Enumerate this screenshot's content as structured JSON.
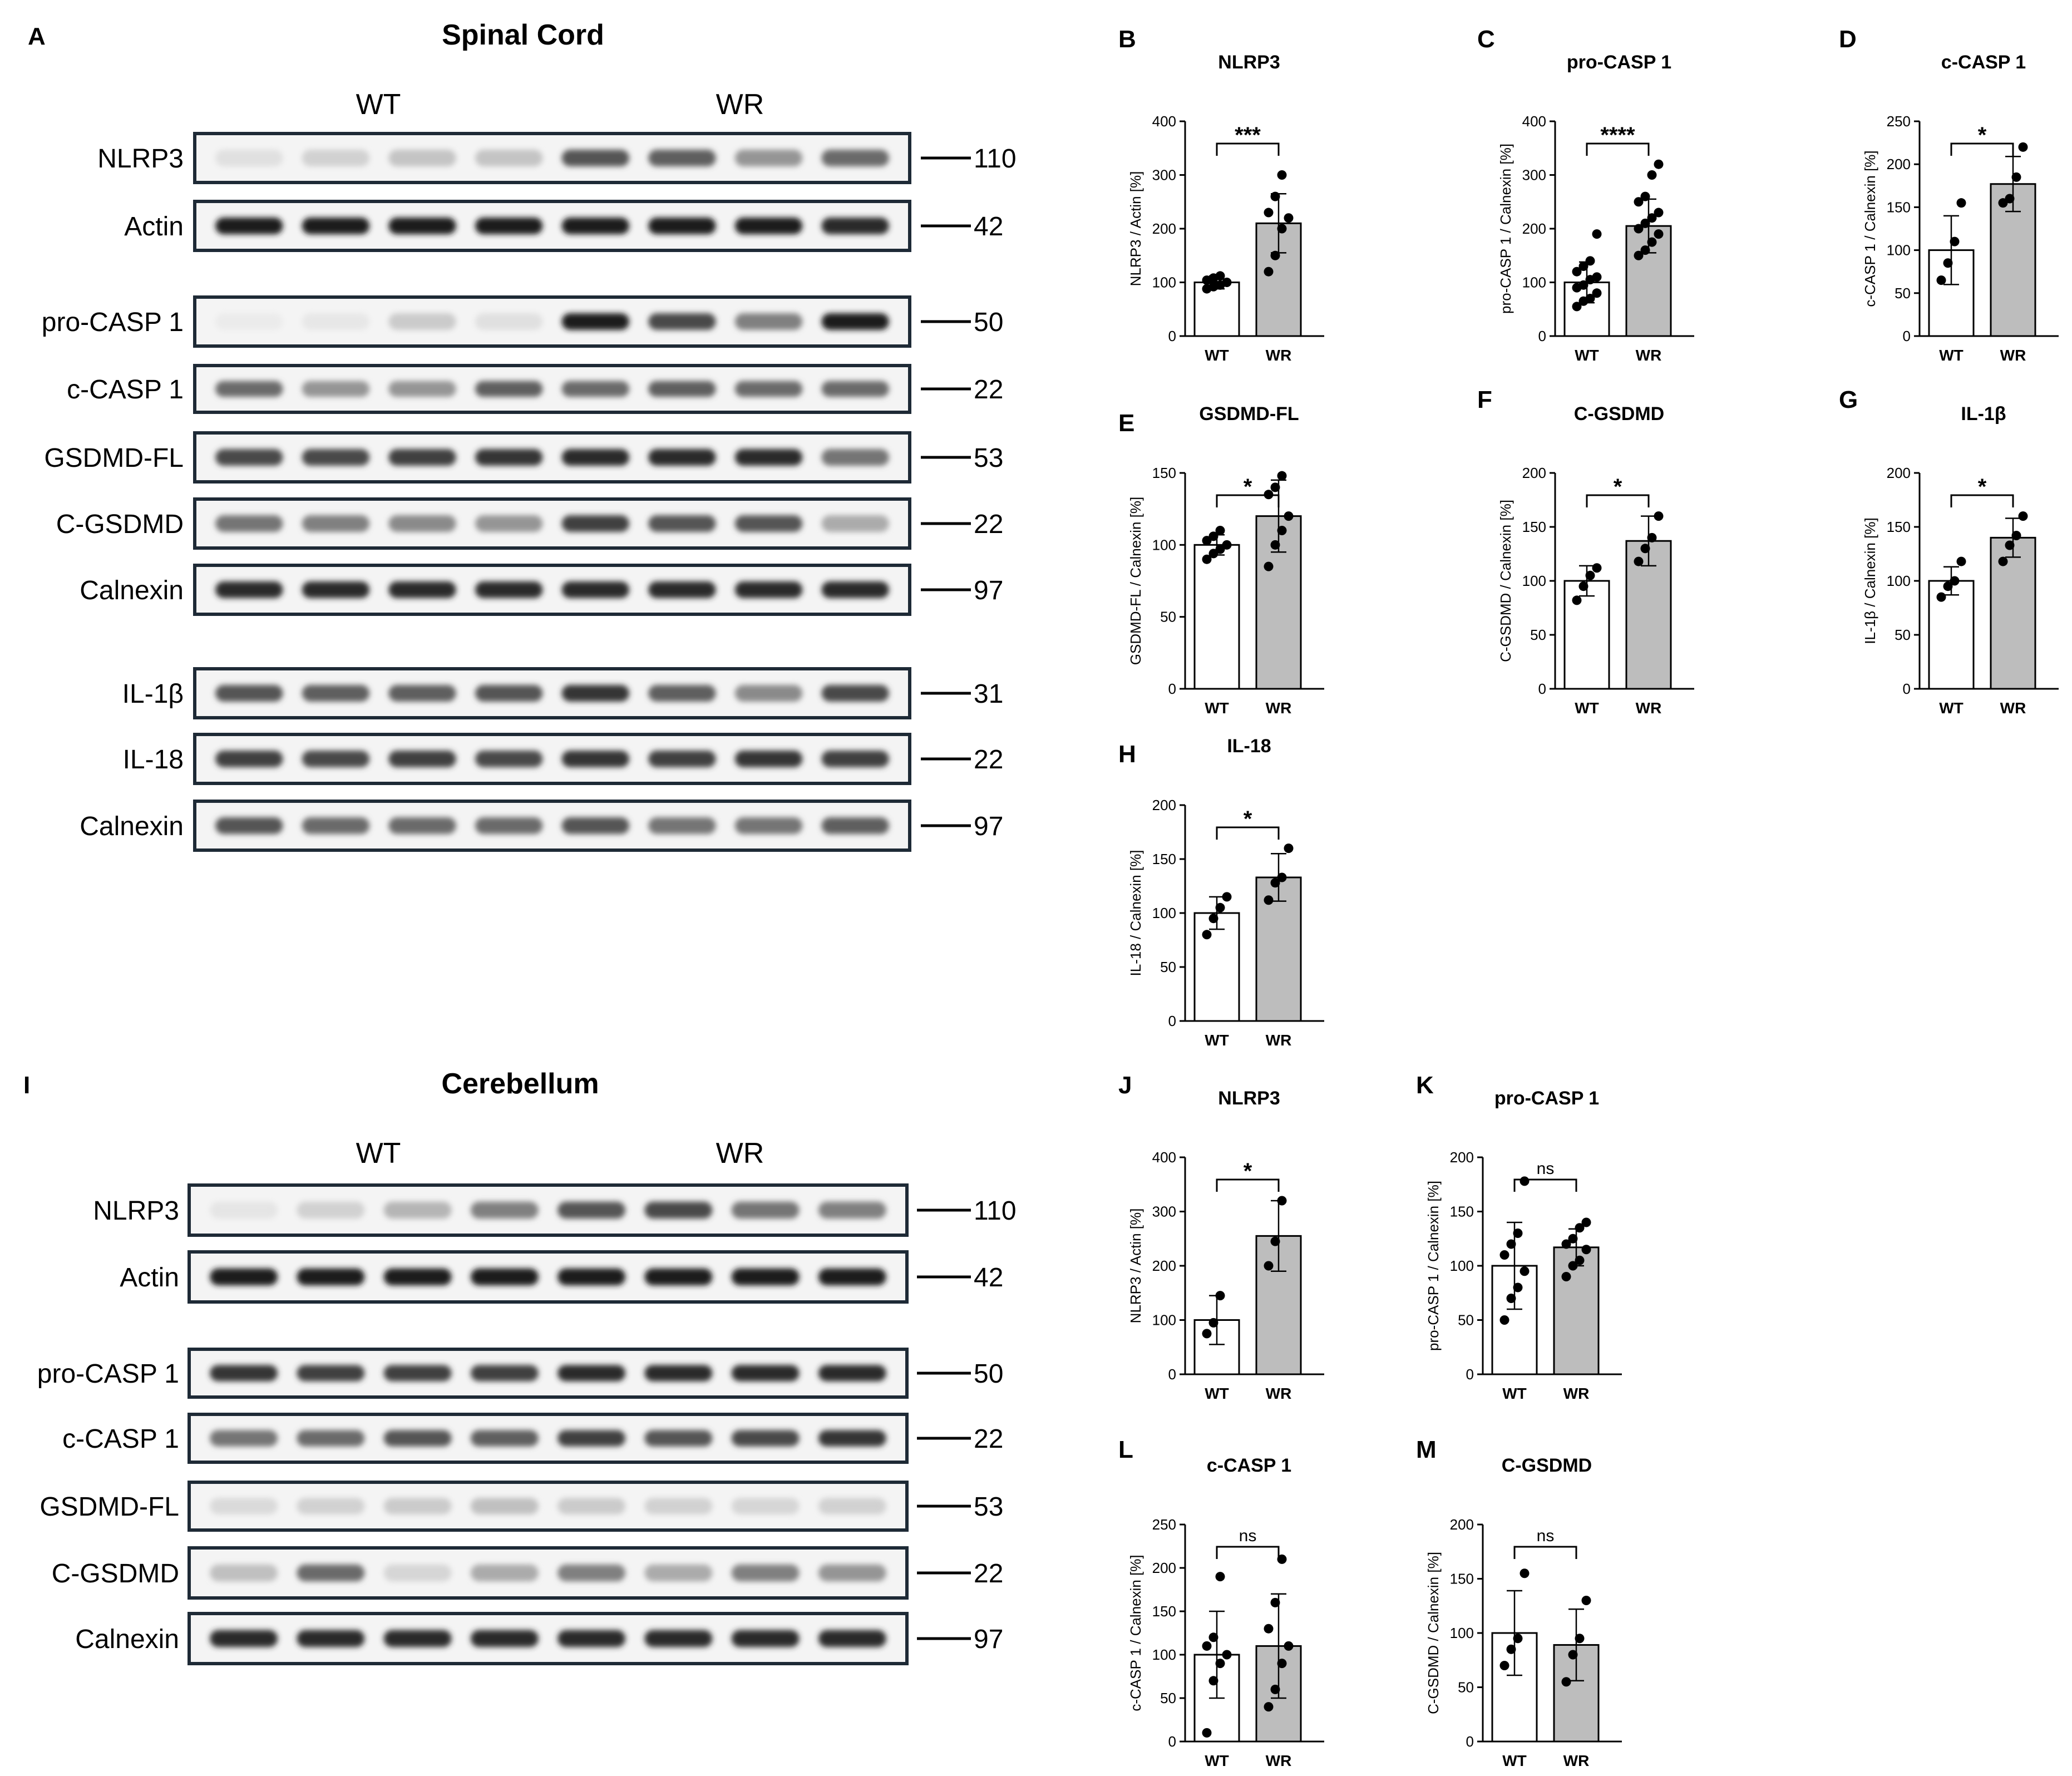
{
  "sections": [
    {
      "letter": "A",
      "title": "Spinal Cord",
      "groups": [
        "WT",
        "WR"
      ],
      "blots": [
        {
          "label": "NLRP3",
          "mw": "110",
          "intensity": [
            0.05,
            0.12,
            0.18,
            0.18,
            0.7,
            0.65,
            0.4,
            0.6
          ]
        },
        {
          "label": "Actin",
          "mw": "42",
          "intensity": [
            0.95,
            0.95,
            0.95,
            0.95,
            0.95,
            0.95,
            0.95,
            0.9
          ]
        },
        {
          "label": "pro-CASP 1",
          "mw": "50",
          "intensity": [
            0.0,
            0.02,
            0.15,
            0.05,
            0.95,
            0.75,
            0.5,
            0.95
          ]
        },
        {
          "label": "c-CASP 1",
          "mw": "22",
          "intensity": [
            0.6,
            0.4,
            0.4,
            0.65,
            0.6,
            0.65,
            0.6,
            0.6
          ]
        },
        {
          "label": "GSDMD-FL",
          "mw": "53",
          "intensity": [
            0.75,
            0.75,
            0.8,
            0.85,
            0.9,
            0.9,
            0.9,
            0.55
          ]
        },
        {
          "label": "C-GSDMD",
          "mw": "22",
          "intensity": [
            0.55,
            0.5,
            0.45,
            0.4,
            0.8,
            0.7,
            0.7,
            0.3
          ]
        },
        {
          "label": "Calnexin",
          "mw": "97",
          "intensity": [
            0.9,
            0.9,
            0.9,
            0.9,
            0.9,
            0.9,
            0.9,
            0.9
          ]
        },
        {
          "label": "IL-1β",
          "mw": "31",
          "intensity": [
            0.7,
            0.65,
            0.65,
            0.7,
            0.85,
            0.65,
            0.45,
            0.75
          ]
        },
        {
          "label": "IL-18",
          "mw": "22",
          "intensity": [
            0.8,
            0.75,
            0.8,
            0.75,
            0.85,
            0.8,
            0.85,
            0.8
          ]
        },
        {
          "label": "Calnexin",
          "mw": "97",
          "intensity": [
            0.7,
            0.6,
            0.6,
            0.6,
            0.7,
            0.55,
            0.55,
            0.65
          ]
        }
      ]
    },
    {
      "letter": "I",
      "title": "Cerebellum",
      "groups": [
        "WT",
        "WR"
      ],
      "blots": [
        {
          "label": "NLRP3",
          "mw": "110",
          "intensity": [
            0.03,
            0.12,
            0.25,
            0.5,
            0.7,
            0.75,
            0.55,
            0.5
          ]
        },
        {
          "label": "Actin",
          "mw": "42",
          "intensity": [
            0.95,
            0.95,
            0.95,
            0.95,
            0.95,
            0.95,
            0.95,
            0.95
          ]
        },
        {
          "label": "pro-CASP 1",
          "mw": "50",
          "intensity": [
            0.85,
            0.8,
            0.8,
            0.8,
            0.9,
            0.9,
            0.9,
            0.9
          ]
        },
        {
          "label": "c-CASP 1",
          "mw": "22",
          "intensity": [
            0.55,
            0.6,
            0.7,
            0.65,
            0.8,
            0.7,
            0.75,
            0.85
          ]
        },
        {
          "label": "GSDMD-FL",
          "mw": "53",
          "intensity": [
            0.08,
            0.12,
            0.15,
            0.2,
            0.15,
            0.12,
            0.1,
            0.12
          ]
        },
        {
          "label": "C-GSDMD",
          "mw": "22",
          "intensity": [
            0.2,
            0.6,
            0.1,
            0.3,
            0.5,
            0.3,
            0.5,
            0.4
          ]
        },
        {
          "label": "Calnexin",
          "mw": "97",
          "intensity": [
            0.9,
            0.9,
            0.9,
            0.9,
            0.9,
            0.9,
            0.9,
            0.9
          ]
        }
      ]
    }
  ],
  "chart_data": [
    {
      "letter": "B",
      "type": "bar",
      "title": "NLRP3",
      "ylabel": "NLRP3 / Actin [%]",
      "categories": [
        "WT",
        "WR"
      ],
      "ylim": [
        0,
        400
      ],
      "yticks": [
        0,
        100,
        200,
        300,
        400
      ],
      "values": [
        100,
        210
      ],
      "errors": [
        12,
        55
      ],
      "points": [
        [
          88,
          92,
          95,
          100,
          104,
          108,
          112
        ],
        [
          120,
          150,
          200,
          220,
          230,
          260,
          300
        ]
      ],
      "significance": "***"
    },
    {
      "letter": "C",
      "type": "bar",
      "title": "pro-CASP 1",
      "ylabel": "pro-CASP 1 / Calnexin [%]",
      "categories": [
        "WT",
        "WR"
      ],
      "ylim": [
        0,
        400
      ],
      "yticks": [
        0,
        100,
        200,
        300,
        400
      ],
      "values": [
        100,
        205
      ],
      "errors": [
        38,
        50
      ],
      "points": [
        [
          55,
          65,
          70,
          80,
          90,
          95,
          105,
          110,
          120,
          130,
          140,
          190
        ],
        [
          150,
          160,
          175,
          190,
          200,
          210,
          220,
          230,
          250,
          260,
          300,
          320
        ]
      ],
      "significance": "****"
    },
    {
      "letter": "D",
      "type": "bar",
      "title": "c-CASP 1",
      "ylabel": "c-CASP 1 / Calnexin [%]",
      "categories": [
        "WT",
        "WR"
      ],
      "ylim": [
        0,
        250
      ],
      "yticks": [
        0,
        50,
        100,
        150,
        200,
        250
      ],
      "values": [
        100,
        177
      ],
      "errors": [
        40,
        32
      ],
      "points": [
        [
          65,
          85,
          110,
          155
        ],
        [
          155,
          160,
          185,
          220
        ]
      ],
      "significance": "*"
    },
    {
      "letter": "E",
      "type": "bar",
      "title": "GSDMD-FL",
      "ylabel": "GSDMD-FL / Calnexin [%]",
      "categories": [
        "WT",
        "WR"
      ],
      "ylim": [
        0,
        150
      ],
      "yticks": [
        0,
        50,
        100,
        150
      ],
      "values": [
        100,
        120
      ],
      "errors": [
        7,
        25
      ],
      "points": [
        [
          90,
          94,
          97,
          100,
          103,
          106,
          110
        ],
        [
          85,
          100,
          110,
          120,
          135,
          140,
          148
        ]
      ],
      "significance": "*"
    },
    {
      "letter": "F",
      "type": "bar",
      "title": "C-GSDMD",
      "ylabel": "C-GSDMD / Calnexin [%]",
      "categories": [
        "WT",
        "WR"
      ],
      "ylim": [
        0,
        200
      ],
      "yticks": [
        0,
        50,
        100,
        150,
        200
      ],
      "values": [
        100,
        137
      ],
      "errors": [
        14,
        23
      ],
      "points": [
        [
          82,
          95,
          105,
          112
        ],
        [
          118,
          130,
          140,
          160
        ]
      ],
      "significance": "*"
    },
    {
      "letter": "G",
      "type": "bar",
      "title": "IL-1β",
      "ylabel": "IL-1β / Calnexin [%]",
      "categories": [
        "WT",
        "WR"
      ],
      "ylim": [
        0,
        200
      ],
      "yticks": [
        0,
        50,
        100,
        150,
        200
      ],
      "values": [
        100,
        140
      ],
      "errors": [
        13,
        18
      ],
      "points": [
        [
          85,
          95,
          100,
          118
        ],
        [
          118,
          133,
          142,
          160
        ]
      ],
      "significance": "*"
    },
    {
      "letter": "H",
      "type": "bar",
      "title": "IL-18",
      "ylabel": "IL-18 / Calnexin [%]",
      "categories": [
        "WT",
        "WR"
      ],
      "ylim": [
        0,
        200
      ],
      "yticks": [
        0,
        50,
        100,
        150,
        200
      ],
      "values": [
        100,
        133
      ],
      "errors": [
        15,
        22
      ],
      "points": [
        [
          80,
          95,
          105,
          115
        ],
        [
          112,
          128,
          133,
          160
        ]
      ],
      "significance": "*"
    },
    {
      "letter": "J",
      "type": "bar",
      "title": "NLRP3",
      "ylabel": "NLRP3 / Actin [%]",
      "categories": [
        "WT",
        "WR"
      ],
      "ylim": [
        0,
        400
      ],
      "yticks": [
        0,
        100,
        200,
        300,
        400
      ],
      "values": [
        100,
        255
      ],
      "errors": [
        45,
        65
      ],
      "points": [
        [
          75,
          95,
          145
        ],
        [
          200,
          245,
          320
        ]
      ],
      "significance": "*"
    },
    {
      "letter": "K",
      "type": "bar",
      "title": "pro-CASP 1",
      "ylabel": "pro-CASP 1 / Calnexin [%]",
      "categories": [
        "WT",
        "WR"
      ],
      "ylim": [
        0,
        200
      ],
      "yticks": [
        0,
        50,
        100,
        150,
        200
      ],
      "values": [
        100,
        117
      ],
      "errors": [
        40,
        17
      ],
      "points": [
        [
          50,
          70,
          80,
          95,
          110,
          120,
          130,
          178
        ],
        [
          90,
          100,
          105,
          115,
          120,
          125,
          135,
          140
        ]
      ],
      "significance": "ns"
    },
    {
      "letter": "L",
      "type": "bar",
      "title": "c-CASP 1",
      "ylabel": "c-CASP 1 / Calnexin [%]",
      "categories": [
        "WT",
        "WR"
      ],
      "ylim": [
        0,
        250
      ],
      "yticks": [
        0,
        50,
        100,
        150,
        200,
        250
      ],
      "values": [
        100,
        110
      ],
      "errors": [
        50,
        60
      ],
      "points": [
        [
          10,
          70,
          90,
          100,
          110,
          120,
          190
        ],
        [
          40,
          60,
          90,
          110,
          130,
          160,
          210
        ]
      ],
      "significance": "ns"
    },
    {
      "letter": "M",
      "type": "bar",
      "title": "C-GSDMD",
      "ylabel": "C-GSDMD / Calnexin [%]",
      "categories": [
        "WT",
        "WR"
      ],
      "ylim": [
        0,
        200
      ],
      "yticks": [
        0,
        50,
        100,
        150,
        200
      ],
      "values": [
        100,
        89
      ],
      "errors": [
        39,
        33
      ],
      "points": [
        [
          70,
          85,
          95,
          155
        ],
        [
          55,
          80,
          95,
          130
        ]
      ],
      "significance": "ns"
    }
  ]
}
